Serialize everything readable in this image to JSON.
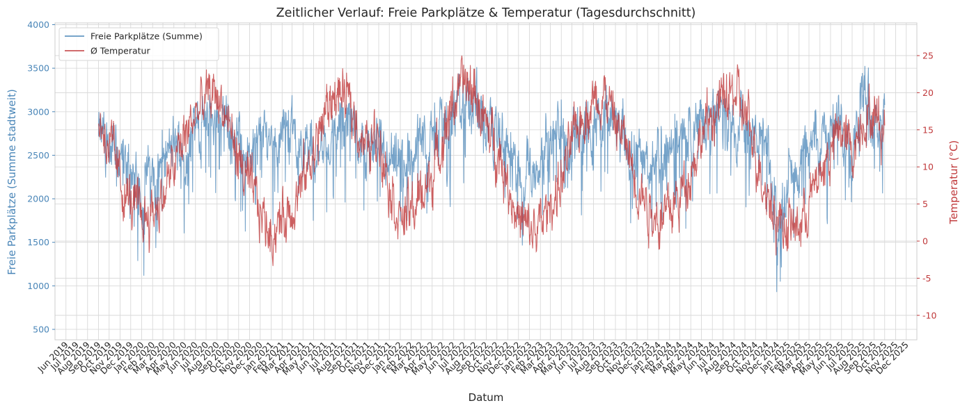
{
  "chart_data": {
    "type": "line",
    "title": "Zeitlicher Verlauf: Freie Parkplätze & Temperatur (Tagesdurchschnitt)",
    "xlabel": "Datum",
    "ylabel_left": "Freie Parkplätze (Summe stadtweit)",
    "ylabel_right": "Temperatur (°C)",
    "grid": true,
    "legend_position": "top-left",
    "x_range": [
      "2019-05-01",
      "2025-12-31"
    ],
    "ylim_left": [
      380,
      4020
    ],
    "ylim_right": [
      -13.3,
      29.4
    ],
    "yticks_left": [
      500,
      1000,
      1500,
      2000,
      2500,
      3000,
      3500,
      4000
    ],
    "yticks_right": [
      -10,
      -5,
      0,
      5,
      10,
      15,
      20,
      25
    ],
    "xtick_labels": [
      "Jun 2019",
      "Jul 2019",
      "Aug 2019",
      "Sep 2019",
      "Oct 2019",
      "Nov 2019",
      "Dec 2019",
      "Jan 2020",
      "Feb 2020",
      "Mar 2020",
      "Apr 2020",
      "May 2020",
      "Jun 2020",
      "Jul 2020",
      "Aug 2020",
      "Sep 2020",
      "Oct 2020",
      "Nov 2020",
      "Dec 2020",
      "Jan 2021",
      "Feb 2021",
      "Mar 2021",
      "Apr 2021",
      "May 2021",
      "Jun 2021",
      "Jul 2021",
      "Aug 2021",
      "Sep 2021",
      "Oct 2021",
      "Nov 2021",
      "Dec 2021",
      "Jan 2022",
      "Feb 2022",
      "Mar 2022",
      "Apr 2022",
      "May 2022",
      "Jun 2022",
      "Jul 2022",
      "Aug 2022",
      "Sep 2022",
      "Oct 2022",
      "Nov 2022",
      "Dec 2022",
      "Jan 2023",
      "Feb 2023",
      "Mar 2023",
      "Apr 2023",
      "May 2023",
      "Jun 2023",
      "Jul 2023",
      "Aug 2023",
      "Sep 2023",
      "Oct 2023",
      "Nov 2023",
      "Dec 2023",
      "Jan 2024",
      "Feb 2024",
      "Mar 2024",
      "Apr 2024",
      "May 2024",
      "Jun 2024",
      "Jul 2024",
      "Aug 2024",
      "Sep 2024",
      "Oct 2024",
      "Nov 2024",
      "Dec 2024",
      "Jan 2025",
      "Feb 2025",
      "Mar 2025",
      "Apr 2025",
      "May 2025",
      "Jun 2025",
      "Jul 2025",
      "Aug 2025",
      "Sep 2025",
      "Oct 2025",
      "Nov 2025",
      "Dec 2025"
    ],
    "series": [
      {
        "name": "Freie Parkplätze (Summe)",
        "axis": "left",
        "color": "#4a86b8",
        "note": "monthly approximations of the daily series (start of month)",
        "x": [
          "2019-09-01",
          "2019-10-01",
          "2019-11-01",
          "2019-12-01",
          "2020-01-01",
          "2020-02-01",
          "2020-03-01",
          "2020-04-01",
          "2020-05-01",
          "2020-06-01",
          "2020-07-01",
          "2020-08-01",
          "2020-09-01",
          "2020-10-01",
          "2020-11-01",
          "2020-12-01",
          "2021-01-01",
          "2021-02-01",
          "2021-03-01",
          "2021-04-01",
          "2021-05-01",
          "2021-06-01",
          "2021-07-01",
          "2021-08-01",
          "2021-09-01",
          "2021-10-01",
          "2021-11-01",
          "2021-12-01",
          "2022-01-01",
          "2022-02-01",
          "2022-03-01",
          "2022-04-01",
          "2022-05-01",
          "2022-06-01",
          "2022-07-01",
          "2022-08-01",
          "2022-09-01",
          "2022-10-01",
          "2022-11-01",
          "2022-12-01",
          "2023-01-01",
          "2023-02-01",
          "2023-03-01",
          "2023-04-01",
          "2023-05-01",
          "2023-06-01",
          "2023-07-01",
          "2023-08-01",
          "2023-09-01",
          "2023-10-01",
          "2023-11-01",
          "2023-12-01",
          "2024-01-01",
          "2024-02-01",
          "2024-03-01",
          "2024-04-01",
          "2024-05-01",
          "2024-06-01",
          "2024-07-01",
          "2024-08-01",
          "2024-09-01",
          "2024-10-01",
          "2024-11-01",
          "2024-12-01",
          "2025-01-01",
          "2025-02-01",
          "2025-03-01",
          "2025-04-01",
          "2025-05-01",
          "2025-06-01",
          "2025-07-01",
          "2025-08-01",
          "2025-09-01",
          "2025-10-01"
        ],
        "values": [
          2700,
          2650,
          2450,
          2250,
          2150,
          2300,
          2450,
          2550,
          2650,
          2800,
          2900,
          2950,
          2900,
          2700,
          2500,
          2700,
          2750,
          2850,
          2800,
          2600,
          2500,
          2600,
          2750,
          2850,
          2800,
          2600,
          2500,
          2300,
          2350,
          2500,
          2650,
          2800,
          2900,
          2950,
          3050,
          3000,
          2900,
          2750,
          2550,
          2300,
          2300,
          2500,
          2600,
          2700,
          2750,
          2800,
          2850,
          2900,
          2850,
          2650,
          2500,
          2350,
          2450,
          2650,
          2750,
          2800,
          2850,
          2900,
          2950,
          2950,
          2850,
          2700,
          2500,
          1700,
          2300,
          2450,
          2650,
          2700,
          2750,
          2800,
          2550,
          3300,
          2950,
          2900
        ]
      },
      {
        "name": "Ø Temperatur",
        "axis": "right",
        "color": "#c0393b",
        "note": "monthly approximations of the daily series (start of month)",
        "x": [
          "2019-09-01",
          "2019-10-01",
          "2019-11-01",
          "2019-12-01",
          "2020-01-01",
          "2020-02-01",
          "2020-03-01",
          "2020-04-01",
          "2020-05-01",
          "2020-06-01",
          "2020-07-01",
          "2020-08-01",
          "2020-09-01",
          "2020-10-01",
          "2020-11-01",
          "2020-12-01",
          "2021-01-01",
          "2021-02-01",
          "2021-03-01",
          "2021-04-01",
          "2021-05-01",
          "2021-06-01",
          "2021-07-01",
          "2021-08-01",
          "2021-09-01",
          "2021-10-01",
          "2021-11-01",
          "2021-12-01",
          "2022-01-01",
          "2022-02-01",
          "2022-03-01",
          "2022-04-01",
          "2022-05-01",
          "2022-06-01",
          "2022-07-01",
          "2022-08-01",
          "2022-09-01",
          "2022-10-01",
          "2022-11-01",
          "2022-12-01",
          "2023-01-01",
          "2023-02-01",
          "2023-03-01",
          "2023-04-01",
          "2023-05-01",
          "2023-06-01",
          "2023-07-01",
          "2023-08-01",
          "2023-09-01",
          "2023-10-01",
          "2023-11-01",
          "2023-12-01",
          "2024-01-01",
          "2024-02-01",
          "2024-03-01",
          "2024-04-01",
          "2024-05-01",
          "2024-06-01",
          "2024-07-01",
          "2024-08-01",
          "2024-09-01",
          "2024-10-01",
          "2024-11-01",
          "2024-12-01",
          "2025-01-01",
          "2025-02-01",
          "2025-03-01",
          "2025-04-01",
          "2025-05-01",
          "2025-06-01",
          "2025-07-01",
          "2025-08-01",
          "2025-09-01",
          "2025-10-01"
        ],
        "values": [
          17,
          13,
          8,
          5,
          3,
          4,
          6,
          10,
          14,
          17,
          19,
          20,
          16,
          11,
          7,
          4,
          1,
          3,
          5,
          8,
          12,
          17,
          20,
          19,
          16,
          12,
          15,
          8,
          3,
          4,
          6,
          9,
          14,
          19,
          21,
          20,
          15,
          13,
          8,
          3,
          1,
          2,
          5,
          8,
          13,
          17,
          19,
          20,
          16,
          13,
          8,
          5,
          3,
          4,
          6,
          10,
          14,
          17,
          19,
          20,
          17,
          12,
          7,
          3,
          2,
          2,
          5,
          9,
          12,
          15,
          12,
          17,
          17,
          15
        ]
      }
    ]
  }
}
